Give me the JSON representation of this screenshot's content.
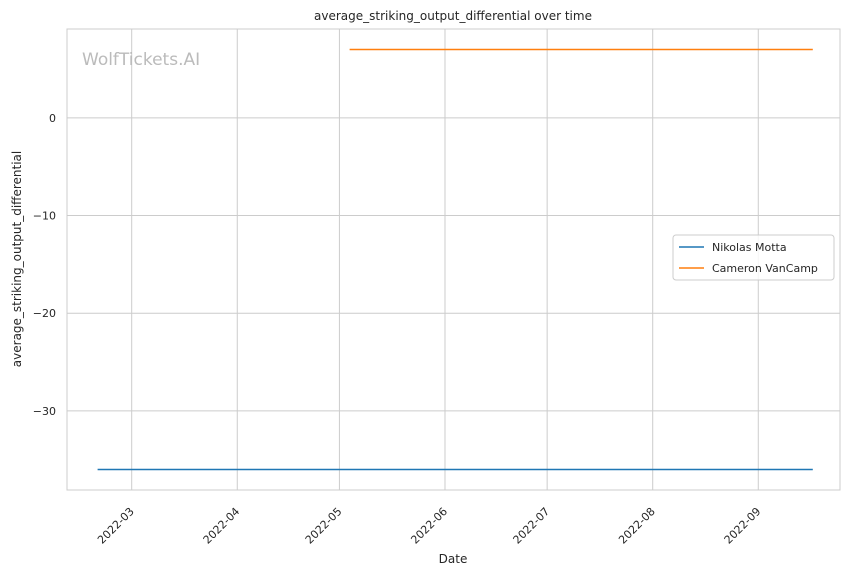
{
  "watermark": "WolfTickets.AI",
  "chart_data": {
    "type": "line",
    "title": "average_striking_output_differential over time",
    "xlabel": "Date",
    "ylabel": "average_striking_output_differential",
    "x_type": "date",
    "xlim": [
      "2022-02-10",
      "2022-09-25"
    ],
    "ylim": [
      -38.1,
      9.1
    ],
    "x_ticks": [
      "2022-03-01",
      "2022-04-01",
      "2022-05-01",
      "2022-06-01",
      "2022-07-01",
      "2022-08-01",
      "2022-09-01"
    ],
    "x_tick_labels": [
      "2022-03",
      "2022-04",
      "2022-05",
      "2022-06",
      "2022-07",
      "2022-08",
      "2022-09"
    ],
    "y_ticks": [
      0,
      -10,
      -20,
      -30
    ],
    "y_tick_labels": [
      "0",
      "−10",
      "−20",
      "−30"
    ],
    "grid": true,
    "legend_position": "center-right",
    "series": [
      {
        "name": "Nikolas Motta",
        "color": "#1f77b4",
        "points": [
          {
            "x": "2022-02-19",
            "y": -36
          },
          {
            "x": "2022-09-17",
            "y": -36
          }
        ]
      },
      {
        "name": "Cameron VanCamp",
        "color": "#ff7f0e",
        "points": [
          {
            "x": "2022-05-04",
            "y": 7
          },
          {
            "x": "2022-09-17",
            "y": 7
          }
        ]
      }
    ]
  }
}
